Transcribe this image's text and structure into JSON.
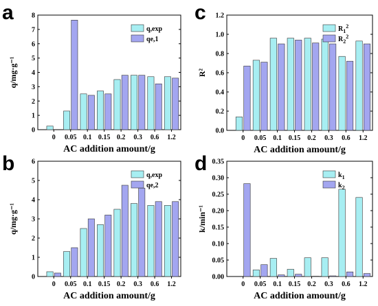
{
  "colors": {
    "series1": "#a7eef2",
    "series2": "#a3a6f0",
    "stroke": "#333333"
  },
  "chart_data": [
    {
      "panel": "a",
      "type": "bar",
      "categories": [
        "0",
        "0.05",
        "0.1",
        "0.15",
        "0.2",
        "0.3",
        "0.6",
        "1.2"
      ],
      "series": [
        {
          "name": "q,exp",
          "values": [
            0.25,
            1.3,
            2.5,
            2.7,
            3.5,
            3.8,
            3.7,
            3.7
          ]
        },
        {
          "name": "qe,1",
          "values": [
            null,
            7.65,
            2.4,
            2.5,
            3.8,
            3.8,
            3.2,
            3.6
          ]
        }
      ],
      "xlabel": "AC addition amount/g",
      "ylabel": "q/mg·g⁻¹",
      "ylim": [
        0,
        8
      ],
      "yticks": [
        "0",
        "1",
        "2",
        "3",
        "4",
        "5",
        "6",
        "7",
        "8"
      ],
      "legend": "top-right"
    },
    {
      "panel": "b",
      "type": "bar",
      "categories": [
        "0",
        "0.05",
        "0.1",
        "0.15",
        "0.2",
        "0.3",
        "0.6",
        "1.2"
      ],
      "series": [
        {
          "name": "q,exp",
          "values": [
            0.25,
            1.3,
            2.5,
            2.7,
            3.5,
            3.8,
            3.7,
            3.7
          ]
        },
        {
          "name": "qe,2",
          "values": [
            0.18,
            1.5,
            3.0,
            3.2,
            4.75,
            4.6,
            3.9,
            3.9
          ]
        }
      ],
      "xlabel": "AC addition amount/g",
      "ylabel": "q/mg·g⁻¹",
      "ylim": [
        0,
        6
      ],
      "yticks": [
        "0",
        "1",
        "2",
        "3",
        "4",
        "5",
        "6"
      ],
      "legend": "top-right"
    },
    {
      "panel": "c",
      "type": "bar",
      "categories": [
        "0",
        "0.05",
        "0.1",
        "0.15",
        "0.2",
        "0.3",
        "0.6",
        "1.2"
      ],
      "series": [
        {
          "name": "R₁²",
          "values": [
            0.14,
            0.73,
            0.96,
            0.96,
            0.96,
            0.95,
            0.77,
            0.93
          ]
        },
        {
          "name": "R₂²",
          "values": [
            0.67,
            0.71,
            0.9,
            0.94,
            0.91,
            0.9,
            0.72,
            0.9
          ]
        }
      ],
      "xlabel": "AC addition amount/g",
      "ylabel": "R²",
      "ylim": [
        0,
        1.2
      ],
      "yticks": [
        "0.0",
        "0.2",
        "0.4",
        "0.6",
        "0.8",
        "1.0",
        "1.2"
      ],
      "legend": "top-right"
    },
    {
      "panel": "d",
      "type": "bar",
      "categories": [
        "0",
        "0.05",
        "0.1",
        "0.15",
        "0.2",
        "0.3",
        "0.6",
        "1.2"
      ],
      "series": [
        {
          "name": "k₁",
          "values": [
            null,
            0.02,
            0.055,
            0.022,
            0.057,
            0.057,
            0.265,
            0.24
          ]
        },
        {
          "name": "k₂",
          "values": [
            0.282,
            0.036,
            0.005,
            0.007,
            0.001,
            0.002,
            0.014,
            0.009
          ]
        }
      ],
      "xlabel": "AC addition amount/g",
      "ylabel": "k/min⁻¹",
      "ylim": [
        0,
        0.35
      ],
      "yticks": [
        "0.00",
        "0.05",
        "0.10",
        "0.15",
        "0.20",
        "0.25",
        "0.30",
        "0.35"
      ],
      "legend": "top-right"
    }
  ]
}
